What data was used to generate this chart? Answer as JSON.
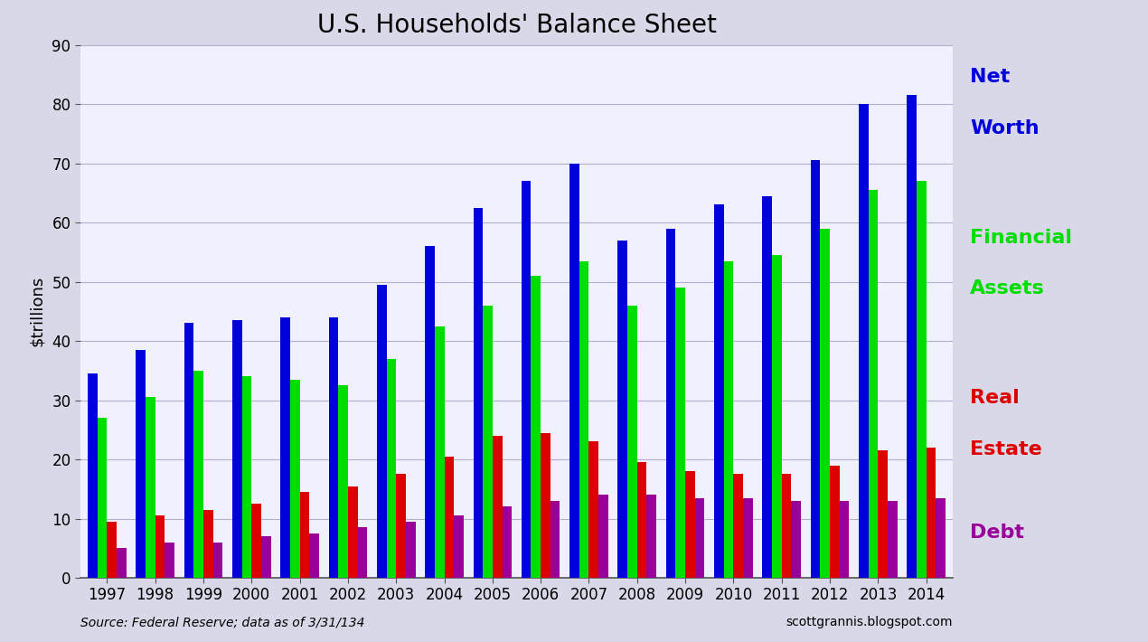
{
  "title": "U.S. Households' Balance Sheet",
  "ylabel": "$trillions",
  "source_text": "Source: Federal Reserve; data as of 3/31/134",
  "website_text": "scottgrannis.blogspot.com",
  "years": [
    1997,
    1998,
    1999,
    2000,
    2001,
    2002,
    2003,
    2004,
    2005,
    2006,
    2007,
    2008,
    2009,
    2010,
    2011,
    2012,
    2013,
    2014
  ],
  "net_worth": [
    34.5,
    38.5,
    43.0,
    43.5,
    44.0,
    44.0,
    49.5,
    56.0,
    62.5,
    67.0,
    70.0,
    57.0,
    59.0,
    63.0,
    64.5,
    70.5,
    80.0,
    81.5
  ],
  "financial_assets": [
    27.0,
    30.5,
    35.0,
    34.0,
    33.5,
    32.5,
    37.0,
    42.5,
    46.0,
    51.0,
    53.5,
    46.0,
    49.0,
    53.5,
    54.5,
    59.0,
    65.5,
    67.0
  ],
  "real_estate": [
    9.5,
    10.5,
    11.5,
    12.5,
    14.5,
    15.5,
    17.5,
    20.5,
    24.0,
    24.5,
    23.0,
    19.5,
    18.0,
    17.5,
    17.5,
    19.0,
    21.5,
    22.0
  ],
  "debt": [
    5.0,
    6.0,
    6.0,
    7.0,
    7.5,
    8.5,
    9.5,
    10.5,
    12.0,
    13.0,
    14.0,
    14.0,
    13.5,
    13.5,
    13.0,
    13.0,
    13.0,
    13.5
  ],
  "color_net_worth": "#0000dd",
  "color_financial_assets": "#00dd00",
  "color_real_estate": "#dd0000",
  "color_debt": "#990099",
  "ylim": [
    0,
    90
  ],
  "yticks": [
    0,
    10,
    20,
    30,
    40,
    50,
    60,
    70,
    80,
    90
  ],
  "background_color": "#d8d8e8",
  "plot_background": "#f0f0ff",
  "grid_color": "#b0b0cc",
  "title_fontsize": 20,
  "axis_label_fontsize": 13,
  "tick_fontsize": 12,
  "annotation_fontsize": 16,
  "bar_width": 0.2
}
